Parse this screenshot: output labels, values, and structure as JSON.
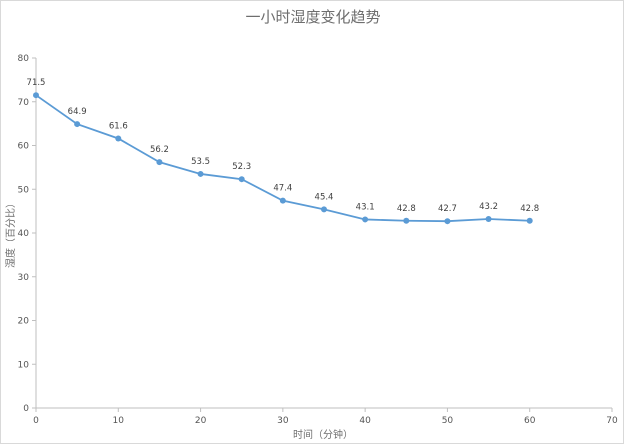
{
  "chart_data": {
    "type": "line",
    "title": "一小时湿度变化趋势",
    "xlabel": "时间（分钟）",
    "ylabel": "湿度（百分比）",
    "xlim": [
      0,
      70
    ],
    "ylim": [
      0,
      80
    ],
    "x_ticks": [
      0,
      10,
      20,
      30,
      40,
      50,
      60,
      70
    ],
    "y_ticks": [
      0,
      10,
      20,
      30,
      40,
      50,
      60,
      70,
      80
    ],
    "grid": false,
    "legend": "none",
    "series": [
      {
        "color": "#5b9bd5",
        "x": [
          0,
          5,
          10,
          15,
          20,
          25,
          30,
          35,
          40,
          45,
          50,
          55,
          60
        ],
        "y": [
          71.5,
          64.9,
          61.6,
          56.2,
          53.5,
          52.3,
          47.4,
          45.4,
          43.1,
          42.8,
          42.7,
          43.2,
          42.8
        ],
        "labels": [
          "71.5",
          "64.9",
          "61.6",
          "56.2",
          "53.5",
          "52.3",
          "47.4",
          "45.4",
          "43.1",
          "42.8",
          "42.7",
          "43.2",
          "42.8"
        ]
      }
    ]
  }
}
